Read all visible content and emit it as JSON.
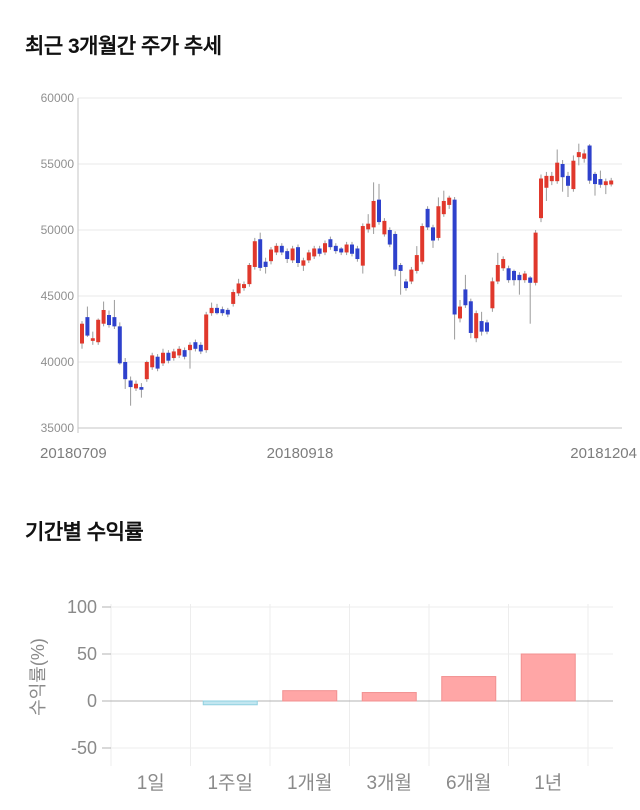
{
  "chart_data": [
    {
      "type": "candlestick",
      "title": "최근 3개월간 주가 추세",
      "x_labels": [
        "20180709",
        "20180918",
        "20181204"
      ],
      "y_ticks": [
        60000,
        55000,
        50000,
        45000,
        40000,
        35000
      ],
      "ylim": [
        35000,
        60000
      ],
      "grid": true,
      "colors": {
        "up": "#e0382c",
        "down": "#2e41cc",
        "wick": "#9b9b9b",
        "grid": "#e9e9e9",
        "axis": "#c6c6c6",
        "tick_text": "#909090",
        "date_text": "#7d7d7d"
      },
      "candles": [
        [
          41400,
          43100,
          41000,
          42900
        ],
        [
          43400,
          44200,
          41900,
          42000
        ],
        [
          41600,
          42300,
          41300,
          41800
        ],
        [
          41500,
          43300,
          41300,
          43200
        ],
        [
          42900,
          44580,
          42700,
          43940
        ],
        [
          43560,
          43900,
          42600,
          42800
        ],
        [
          43400,
          44700,
          42500,
          42700
        ],
        [
          42700,
          43000,
          39800,
          39900
        ],
        [
          40000,
          40300,
          37960,
          38700
        ],
        [
          38600,
          38900,
          36690,
          38100
        ],
        [
          38000,
          38600,
          37800,
          38350
        ],
        [
          38100,
          38400,
          37300,
          37900
        ],
        [
          38700,
          40100,
          38500,
          40000
        ],
        [
          39600,
          40700,
          39400,
          40500
        ],
        [
          40400,
          40600,
          39300,
          39500
        ],
        [
          39900,
          41000,
          39700,
          40700
        ],
        [
          40700,
          40900,
          39900,
          40100
        ],
        [
          40300,
          41000,
          40100,
          40800
        ],
        [
          40500,
          41200,
          40300,
          41000
        ],
        [
          40900,
          41100,
          40200,
          40400
        ],
        [
          40900,
          41500,
          39500,
          41300
        ],
        [
          41500,
          41700,
          40800,
          41000
        ],
        [
          41300,
          41500,
          40600,
          40800
        ],
        [
          40900,
          43800,
          40700,
          43600
        ],
        [
          43700,
          44500,
          43500,
          44100
        ],
        [
          44100,
          44400,
          43600,
          43700
        ],
        [
          44000,
          44200,
          43500,
          43700
        ],
        [
          43950,
          44100,
          43400,
          43600
        ],
        [
          44400,
          45500,
          44200,
          45300
        ],
        [
          45200,
          46300,
          45000,
          45950
        ],
        [
          45600,
          46100,
          45400,
          45900
        ],
        [
          45900,
          47500,
          45700,
          47350
        ],
        [
          47200,
          49400,
          47000,
          49150
        ],
        [
          49300,
          49800,
          46900,
          47130
        ],
        [
          47600,
          47900,
          46700,
          47200
        ],
        [
          47640,
          48700,
          47400,
          48520
        ],
        [
          48300,
          49000,
          48100,
          48800
        ],
        [
          48800,
          49000,
          48100,
          48300
        ],
        [
          48400,
          48600,
          47500,
          47800
        ],
        [
          47700,
          48800,
          47500,
          48600
        ],
        [
          48700,
          48900,
          47200,
          47500
        ],
        [
          47300,
          47900,
          46900,
          47700
        ],
        [
          47700,
          48500,
          47500,
          48300
        ],
        [
          48000,
          48800,
          47800,
          48600
        ],
        [
          48600,
          48800,
          48000,
          48200
        ],
        [
          48300,
          49200,
          48100,
          49000
        ],
        [
          49300,
          49500,
          48500,
          48700
        ],
        [
          48800,
          49000,
          48200,
          48400
        ],
        [
          48600,
          48700,
          48100,
          48300
        ],
        [
          48300,
          49100,
          48100,
          48900
        ],
        [
          48900,
          49100,
          48000,
          48200
        ],
        [
          48600,
          48800,
          47600,
          47800
        ],
        [
          47300,
          50500,
          46700,
          50300
        ],
        [
          50050,
          51200,
          49800,
          50480
        ],
        [
          50200,
          53610,
          49700,
          52200
        ],
        [
          52300,
          53490,
          50400,
          50600
        ],
        [
          49670,
          50900,
          49500,
          50690
        ],
        [
          50000,
          50200,
          48700,
          48900
        ],
        [
          49700,
          49900,
          46500,
          47000
        ],
        [
          47350,
          47500,
          45100,
          46900
        ],
        [
          46100,
          46300,
          45400,
          45600
        ],
        [
          46100,
          47200,
          45900,
          47000
        ],
        [
          46900,
          48780,
          46700,
          48100
        ],
        [
          47600,
          50500,
          47400,
          50300
        ],
        [
          51600,
          51800,
          50000,
          50200
        ],
        [
          50200,
          50400,
          48650,
          49200
        ],
        [
          49400,
          52470,
          49200,
          51800
        ],
        [
          51200,
          52980,
          51000,
          52200
        ],
        [
          51900,
          52600,
          51600,
          52450
        ],
        [
          52300,
          52500,
          41700,
          43600
        ],
        [
          43300,
          44700,
          43000,
          44200
        ],
        [
          45500,
          46600,
          44100,
          44300
        ],
        [
          44600,
          44800,
          41800,
          42200
        ],
        [
          41800,
          43900,
          41500,
          43700
        ],
        [
          43100,
          43800,
          42000,
          42300
        ],
        [
          43000,
          43200,
          42100,
          42300
        ],
        [
          44070,
          46400,
          43800,
          46110
        ],
        [
          46100,
          48270,
          45900,
          47350
        ],
        [
          47100,
          48000,
          46900,
          47800
        ],
        [
          47100,
          47300,
          46000,
          46200
        ],
        [
          46900,
          47000,
          45800,
          46200
        ],
        [
          46600,
          46800,
          45100,
          46200
        ],
        [
          46200,
          46900,
          46000,
          46700
        ],
        [
          46400,
          46500,
          42900,
          46000
        ],
        [
          46000,
          50000,
          45800,
          49800
        ],
        [
          50900,
          54200,
          50600,
          53900
        ],
        [
          53200,
          54400,
          52200,
          54100
        ],
        [
          53700,
          54400,
          53400,
          54100
        ],
        [
          53700,
          56100,
          53500,
          55100
        ],
        [
          55000,
          55300,
          52900,
          54000
        ],
        [
          54100,
          54400,
          52500,
          53350
        ],
        [
          53100,
          55650,
          52900,
          55250
        ],
        [
          55520,
          56540,
          54900,
          55900
        ],
        [
          55400,
          56100,
          55100,
          55800
        ],
        [
          56400,
          56500,
          53500,
          53740
        ],
        [
          54250,
          54400,
          52600,
          53480
        ],
        [
          53860,
          54500,
          53200,
          53430
        ],
        [
          53400,
          53900,
          52720,
          53690
        ],
        [
          53450,
          53950,
          53300,
          53750
        ]
      ]
    },
    {
      "type": "bar",
      "title": "기간별 수익률",
      "ylabel": "수익률(%)",
      "categories": [
        "1일",
        "1주일",
        "1개월",
        "3개월",
        "6개월",
        "1년"
      ],
      "values": [
        0,
        -4,
        11,
        9,
        26,
        50
      ],
      "y_ticks": [
        100,
        50,
        0,
        -50
      ],
      "ylim": [
        -50,
        100
      ],
      "grid": true,
      "colors": {
        "positive_fill": "#ffa6a6",
        "positive_stroke": "#f19090",
        "negative_fill": "#c2e6f0",
        "negative_stroke": "#8fd0e0",
        "grid": "#ededed",
        "zero_line": "#b3b3b3",
        "text": "#8a8a8a"
      }
    }
  ]
}
